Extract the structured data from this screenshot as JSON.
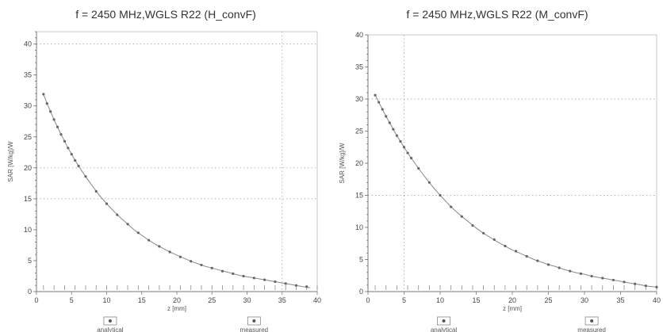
{
  "chart_data": [
    {
      "type": "line",
      "title": "f = 2450 MHz,WGLS R22 (H_convF)",
      "xlabel": "z [mm]",
      "ylabel": "SAR [W/kg]/W",
      "xlim": [
        0,
        40
      ],
      "ylim": [
        0,
        42
      ],
      "xticks": [
        0,
        5,
        10,
        15,
        20,
        25,
        30,
        35,
        40
      ],
      "yticks": [
        0,
        5,
        10,
        15,
        20,
        25,
        30,
        35,
        40
      ],
      "grid": {
        "y": [
          20,
          40,
          15
        ],
        "x": [
          35
        ]
      },
      "legend": [
        "analytical",
        "measured"
      ],
      "legend_position": "bottom",
      "series": [
        {
          "name": "analytical",
          "x": [
            1,
            1.5,
            2,
            2.5,
            3,
            3.5,
            4,
            4.5,
            5,
            5.5,
            6,
            7,
            8,
            9,
            10,
            11,
            12,
            13,
            14,
            15,
            16,
            17,
            18,
            19,
            20,
            21,
            22,
            23,
            24,
            25,
            26,
            27,
            28,
            29,
            30,
            31,
            32,
            33,
            34,
            35,
            36,
            37,
            38,
            39
          ],
          "values": [
            31.9,
            30.4,
            29.1,
            27.8,
            26.6,
            25.4,
            24.3,
            23.2,
            22.2,
            21.2,
            20.3,
            18.6,
            17.0,
            15.5,
            14.2,
            13.0,
            11.9,
            10.9,
            9.9,
            9.1,
            8.3,
            7.6,
            7.0,
            6.4,
            5.9,
            5.4,
            4.9,
            4.5,
            4.1,
            3.8,
            3.5,
            3.2,
            2.9,
            2.6,
            2.4,
            2.2,
            2.0,
            1.8,
            1.6,
            1.4,
            1.2,
            1.0,
            0.8,
            0.6
          ]
        },
        {
          "name": "measured",
          "x": [
            1,
            1.5,
            2,
            2.5,
            3,
            3.5,
            4,
            4.5,
            5,
            5.5,
            6,
            7,
            8.5,
            10,
            11.5,
            13,
            14.5,
            16,
            17.5,
            19,
            20.5,
            22,
            23.5,
            25,
            26.5,
            28,
            29.5,
            31,
            32.5,
            34,
            35.5,
            37,
            38.5
          ],
          "values": [
            31.9,
            30.4,
            29.1,
            27.8,
            26.6,
            25.4,
            24.3,
            23.2,
            22.2,
            21.2,
            20.3,
            18.6,
            16.2,
            14.2,
            12.4,
            10.9,
            9.5,
            8.3,
            7.3,
            6.4,
            5.6,
            4.9,
            4.3,
            3.8,
            3.3,
            2.9,
            2.5,
            2.2,
            1.9,
            1.6,
            1.3,
            1.0,
            0.8
          ]
        }
      ]
    },
    {
      "type": "line",
      "title": "f = 2450 MHz,WGLS R22 (M_convF)",
      "xlabel": "z [mm]",
      "ylabel": "SAR [W/kg]/W",
      "xlim": [
        0,
        40
      ],
      "ylim": [
        0,
        40
      ],
      "xticks": [
        0,
        5,
        10,
        15,
        20,
        25,
        30,
        35,
        40
      ],
      "yticks": [
        0,
        5,
        10,
        15,
        20,
        25,
        30,
        35,
        40
      ],
      "grid": {
        "y": [
          30,
          15
        ],
        "x": [
          5
        ]
      },
      "legend": [
        "analytical",
        "measured"
      ],
      "legend_position": "bottom",
      "series": [
        {
          "name": "analytical",
          "x": [
            1,
            1.5,
            2,
            2.5,
            3,
            3.5,
            4,
            4.5,
            5,
            5.5,
            6,
            7,
            8,
            9,
            10,
            11,
            12,
            13,
            14,
            15,
            16,
            17,
            18,
            19,
            20,
            21,
            22,
            23,
            24,
            25,
            26,
            27,
            28,
            29,
            30,
            31,
            32,
            33,
            34,
            35,
            36,
            37,
            38,
            39,
            40
          ],
          "values": [
            30.6,
            29.5,
            28.4,
            27.3,
            26.3,
            25.3,
            24.3,
            23.4,
            22.5,
            21.6,
            20.8,
            19.2,
            17.7,
            16.3,
            15.0,
            13.8,
            12.7,
            11.7,
            10.8,
            9.9,
            9.1,
            8.4,
            7.7,
            7.1,
            6.5,
            6.0,
            5.5,
            5.0,
            4.6,
            4.2,
            3.9,
            3.5,
            3.2,
            2.9,
            2.7,
            2.4,
            2.2,
            2.0,
            1.8,
            1.6,
            1.4,
            1.2,
            1.0,
            0.8,
            0.7
          ]
        },
        {
          "name": "measured",
          "x": [
            1,
            1.5,
            2,
            2.5,
            3,
            3.5,
            4,
            4.5,
            5,
            5.5,
            6,
            7,
            8.5,
            10,
            11.5,
            13,
            14.5,
            16,
            17.5,
            19,
            20.5,
            22,
            23.5,
            25,
            26.5,
            28,
            29.5,
            31,
            32.5,
            34,
            35.5,
            37,
            38.5,
            40
          ],
          "values": [
            30.6,
            29.5,
            28.4,
            27.3,
            26.3,
            25.3,
            24.3,
            23.4,
            22.5,
            21.6,
            20.8,
            19.2,
            17.0,
            15.0,
            13.2,
            11.7,
            10.3,
            9.1,
            8.1,
            7.1,
            6.3,
            5.5,
            4.8,
            4.2,
            3.7,
            3.2,
            2.8,
            2.4,
            2.1,
            1.8,
            1.5,
            1.2,
            0.9,
            0.7
          ]
        }
      ]
    }
  ]
}
